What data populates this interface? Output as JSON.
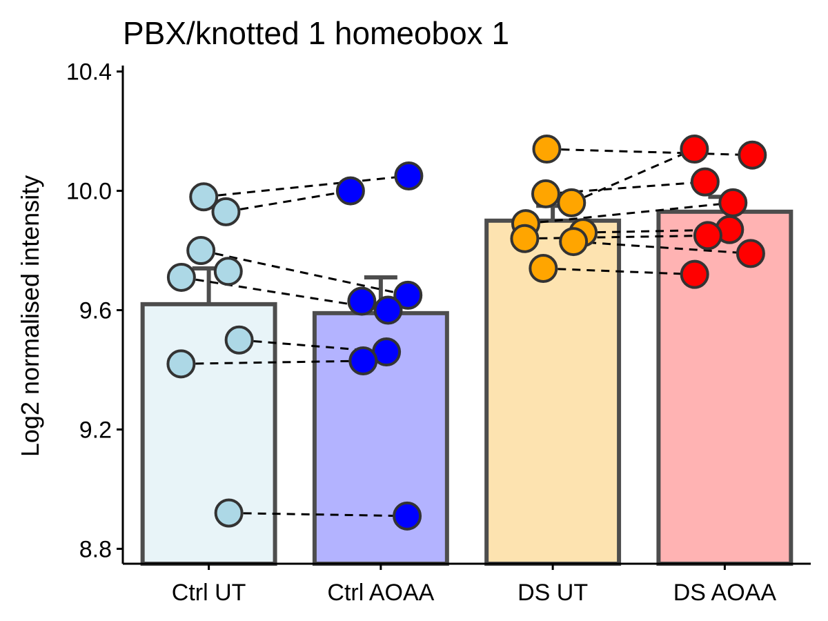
{
  "chart_data": {
    "type": "bar",
    "title": "PBX/knotted 1 homeobox 1",
    "xlabel": "",
    "ylabel": "Log2 normalised intensity",
    "ylim": [
      8.75,
      10.42
    ],
    "yticks": [
      8.8,
      9.2,
      9.6,
      10.0,
      10.4
    ],
    "ytick_labels": [
      "8.8",
      "9.2",
      "9.6",
      "10.0",
      "10.4"
    ],
    "categories": [
      "Ctrl UT",
      "Ctrl AOAA",
      "DS UT",
      "DS AOAA"
    ],
    "series": [
      {
        "values": [
          9.62,
          9.59,
          9.9,
          9.93
        ],
        "error": [
          0.12,
          0.12,
          0.05,
          0.05
        ],
        "bar_fills": [
          "#e8f4f8",
          "#b3b3ff",
          "#fde3b0",
          "#ffb3b3"
        ],
        "point_colors": [
          "#add8e6",
          "#0000ff",
          "#ffa500",
          "#ff0000"
        ]
      }
    ],
    "points": [
      [
        9.93,
        9.98,
        9.8,
        9.73,
        9.71,
        9.5,
        9.42,
        8.92
      ],
      [
        10.05,
        10.0,
        9.65,
        9.63,
        9.6,
        9.46,
        9.43,
        8.91
      ],
      [
        10.14,
        9.99,
        9.96,
        9.89,
        9.86,
        9.84,
        9.83,
        9.74
      ],
      [
        10.14,
        10.12,
        10.03,
        9.96,
        9.87,
        9.85,
        9.79,
        9.72
      ]
    ],
    "pairs": [
      {
        "from": [
          0,
          1
        ],
        "to": [
          1,
          0
        ]
      },
      {
        "from": [
          0,
          0
        ],
        "to": [
          1,
          1
        ]
      },
      {
        "from": [
          0,
          2
        ],
        "to": [
          1,
          2
        ]
      },
      {
        "from": [
          0,
          4
        ],
        "to": [
          1,
          4
        ]
      },
      {
        "from": [
          0,
          5
        ],
        "to": [
          1,
          5
        ]
      },
      {
        "from": [
          0,
          6
        ],
        "to": [
          1,
          6
        ]
      },
      {
        "from": [
          0,
          7
        ],
        "to": [
          1,
          7
        ]
      },
      {
        "from": [
          2,
          0
        ],
        "to": [
          3,
          1
        ]
      },
      {
        "from": [
          2,
          2
        ],
        "to": [
          3,
          0
        ]
      },
      {
        "from": [
          2,
          1
        ],
        "to": [
          3,
          2
        ]
      },
      {
        "from": [
          2,
          3
        ],
        "to": [
          3,
          3
        ]
      },
      {
        "from": [
          2,
          4
        ],
        "to": [
          3,
          4
        ]
      },
      {
        "from": [
          2,
          5
        ],
        "to": [
          3,
          5
        ]
      },
      {
        "from": [
          2,
          6
        ],
        "to": [
          3,
          6
        ]
      },
      {
        "from": [
          2,
          7
        ],
        "to": [
          3,
          7
        ]
      }
    ],
    "grid": false,
    "legend": "none"
  }
}
